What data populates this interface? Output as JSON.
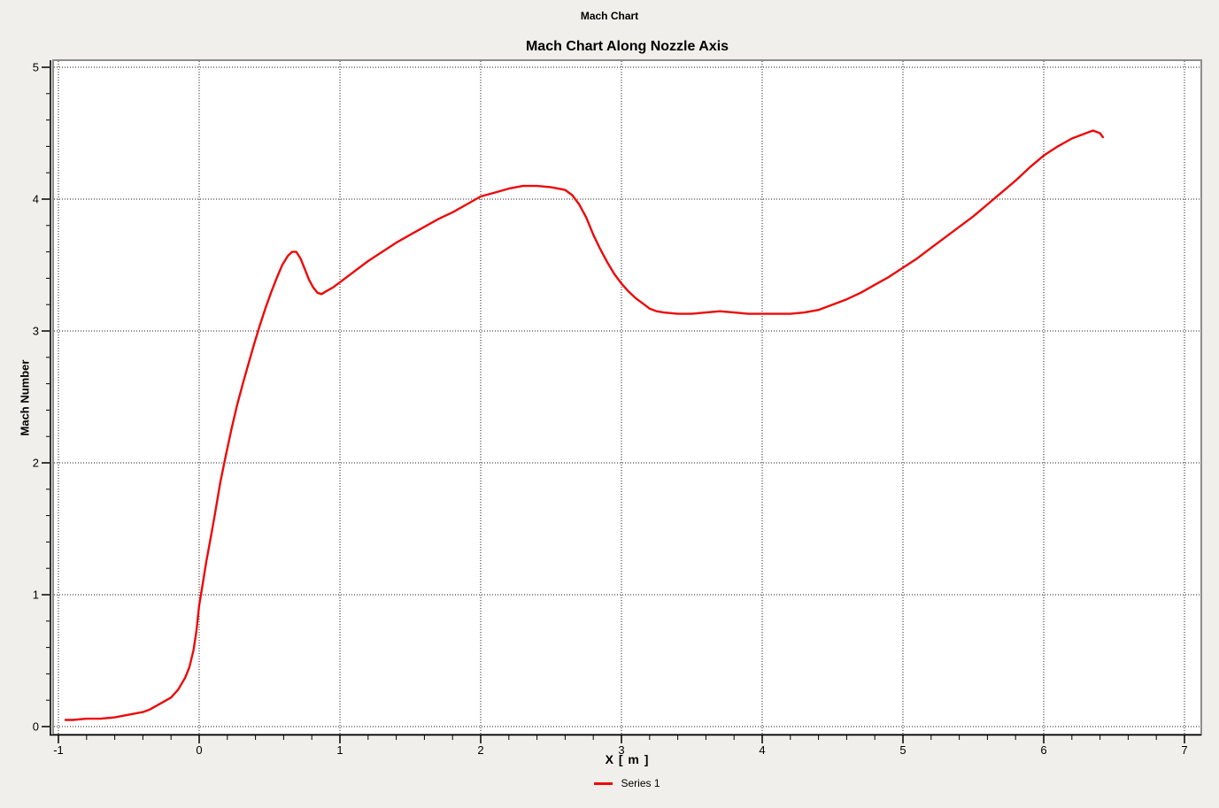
{
  "window_title": "Mach Chart",
  "chart_data": {
    "type": "line",
    "title": "Mach Chart Along Nozzle Axis",
    "xlabel": "X [ m ]",
    "ylabel": "Mach Number",
    "xlim": [
      -1,
      7
    ],
    "ylim": [
      0,
      5
    ],
    "x_major_ticks": [
      -1,
      0,
      1,
      2,
      3,
      4,
      5,
      6,
      7
    ],
    "y_major_ticks": [
      0,
      1,
      2,
      3,
      4,
      5
    ],
    "minor_tick_step": 0.2,
    "grid": "dotted",
    "legend_position": "bottom",
    "series": [
      {
        "name": "Series 1",
        "color": "#ed0909",
        "points": [
          [
            -0.95,
            0.05
          ],
          [
            -0.9,
            0.05
          ],
          [
            -0.8,
            0.06
          ],
          [
            -0.7,
            0.06
          ],
          [
            -0.6,
            0.07
          ],
          [
            -0.5,
            0.09
          ],
          [
            -0.45,
            0.1
          ],
          [
            -0.4,
            0.11
          ],
          [
            -0.35,
            0.13
          ],
          [
            -0.3,
            0.16
          ],
          [
            -0.25,
            0.19
          ],
          [
            -0.2,
            0.22
          ],
          [
            -0.15,
            0.28
          ],
          [
            -0.1,
            0.37
          ],
          [
            -0.07,
            0.45
          ],
          [
            -0.04,
            0.58
          ],
          [
            -0.02,
            0.72
          ],
          [
            0,
            0.92
          ],
          [
            0.02,
            1.05
          ],
          [
            0.05,
            1.25
          ],
          [
            0.08,
            1.42
          ],
          [
            0.11,
            1.6
          ],
          [
            0.15,
            1.85
          ],
          [
            0.19,
            2.06
          ],
          [
            0.23,
            2.26
          ],
          [
            0.27,
            2.44
          ],
          [
            0.31,
            2.6
          ],
          [
            0.35,
            2.75
          ],
          [
            0.39,
            2.9
          ],
          [
            0.43,
            3.04
          ],
          [
            0.47,
            3.17
          ],
          [
            0.51,
            3.29
          ],
          [
            0.55,
            3.4
          ],
          [
            0.59,
            3.5
          ],
          [
            0.63,
            3.57
          ],
          [
            0.66,
            3.6
          ],
          [
            0.69,
            3.6
          ],
          [
            0.72,
            3.55
          ],
          [
            0.75,
            3.47
          ],
          [
            0.78,
            3.39
          ],
          [
            0.81,
            3.33
          ],
          [
            0.84,
            3.29
          ],
          [
            0.87,
            3.28
          ],
          [
            0.9,
            3.3
          ],
          [
            0.95,
            3.33
          ],
          [
            1,
            3.37
          ],
          [
            1.1,
            3.45
          ],
          [
            1.2,
            3.53
          ],
          [
            1.3,
            3.6
          ],
          [
            1.4,
            3.67
          ],
          [
            1.5,
            3.73
          ],
          [
            1.6,
            3.79
          ],
          [
            1.7,
            3.85
          ],
          [
            1.8,
            3.9
          ],
          [
            1.9,
            3.96
          ],
          [
            2,
            4.02
          ],
          [
            2.1,
            4.05
          ],
          [
            2.2,
            4.08
          ],
          [
            2.3,
            4.1
          ],
          [
            2.4,
            4.1
          ],
          [
            2.5,
            4.09
          ],
          [
            2.6,
            4.07
          ],
          [
            2.65,
            4.03
          ],
          [
            2.7,
            3.96
          ],
          [
            2.75,
            3.86
          ],
          [
            2.8,
            3.73
          ],
          [
            2.85,
            3.62
          ],
          [
            2.9,
            3.52
          ],
          [
            2.95,
            3.43
          ],
          [
            3,
            3.36
          ],
          [
            3.05,
            3.3
          ],
          [
            3.1,
            3.25
          ],
          [
            3.15,
            3.21
          ],
          [
            3.2,
            3.17
          ],
          [
            3.25,
            3.15
          ],
          [
            3.3,
            3.14
          ],
          [
            3.4,
            3.13
          ],
          [
            3.5,
            3.13
          ],
          [
            3.6,
            3.14
          ],
          [
            3.7,
            3.15
          ],
          [
            3.8,
            3.14
          ],
          [
            3.9,
            3.13
          ],
          [
            4,
            3.13
          ],
          [
            4.1,
            3.13
          ],
          [
            4.2,
            3.13
          ],
          [
            4.3,
            3.14
          ],
          [
            4.4,
            3.16
          ],
          [
            4.5,
            3.2
          ],
          [
            4.6,
            3.24
          ],
          [
            4.7,
            3.29
          ],
          [
            4.8,
            3.35
          ],
          [
            4.9,
            3.41
          ],
          [
            5,
            3.48
          ],
          [
            5.1,
            3.55
          ],
          [
            5.2,
            3.63
          ],
          [
            5.3,
            3.71
          ],
          [
            5.4,
            3.79
          ],
          [
            5.5,
            3.87
          ],
          [
            5.6,
            3.96
          ],
          [
            5.7,
            4.05
          ],
          [
            5.8,
            4.14
          ],
          [
            5.9,
            4.24
          ],
          [
            6,
            4.33
          ],
          [
            6.1,
            4.4
          ],
          [
            6.2,
            4.46
          ],
          [
            6.3,
            4.5
          ],
          [
            6.35,
            4.52
          ],
          [
            6.4,
            4.5
          ],
          [
            6.42,
            4.47
          ]
        ]
      }
    ]
  },
  "colors": {
    "page_bg": "#f0efec",
    "plot_bg": "#ffffff",
    "frame": "#8d8d8d",
    "grid": "#1a1a1a",
    "axis": "#000000",
    "text": "#000000"
  }
}
